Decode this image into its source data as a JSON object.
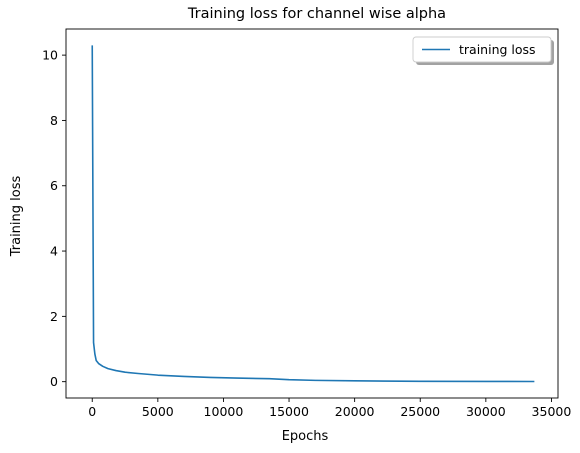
{
  "chart_data": {
    "type": "line",
    "title": "Training loss for channel wise alpha",
    "xlabel": "Epochs",
    "ylabel": "Training loss",
    "xlim": [
      -2000,
      35500
    ],
    "ylim": [
      -0.5,
      10.8
    ],
    "x_ticks": [
      0,
      5000,
      10000,
      15000,
      20000,
      25000,
      30000,
      35000
    ],
    "x_tick_labels": [
      "0",
      "5000",
      "10000",
      "15000",
      "20000",
      "25000",
      "30000",
      "35000"
    ],
    "y_ticks": [
      0,
      2,
      4,
      6,
      8,
      10
    ],
    "y_tick_labels": [
      "0",
      "2",
      "4",
      "6",
      "8",
      "10"
    ],
    "grid": false,
    "legend_position": "top-right",
    "series": [
      {
        "name": "training loss",
        "color": "#1f77b4",
        "x": [
          0,
          100,
          200,
          300,
          500,
          800,
          1200,
          1800,
          2500,
          3500,
          5000,
          7000,
          9000,
          11000,
          13500,
          15000,
          17000,
          20000,
          25000,
          30000,
          33700
        ],
        "y": [
          10.3,
          1.2,
          0.85,
          0.65,
          0.55,
          0.47,
          0.4,
          0.34,
          0.29,
          0.25,
          0.2,
          0.16,
          0.13,
          0.11,
          0.09,
          0.06,
          0.04,
          0.025,
          0.012,
          0.007,
          0.005
        ]
      }
    ]
  }
}
